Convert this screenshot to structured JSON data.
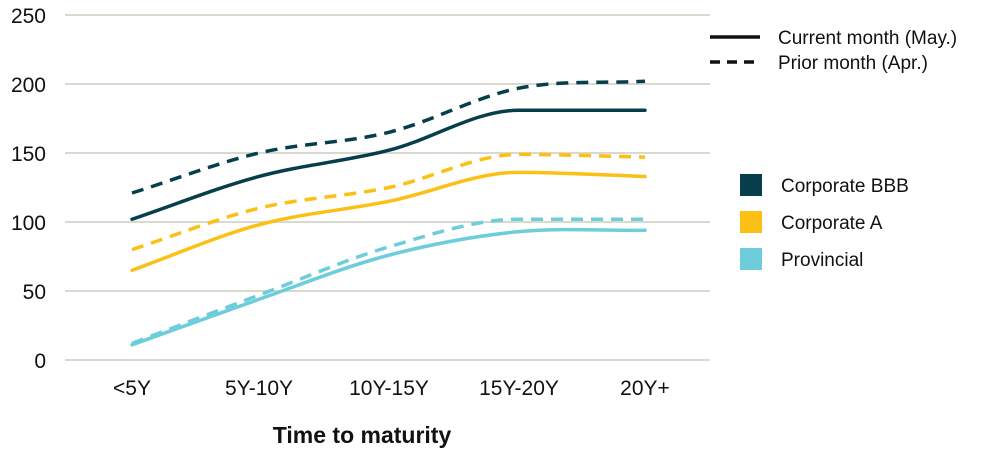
{
  "chart_data": {
    "type": "line",
    "title": "",
    "xlabel": "Time to maturity",
    "ylabel": "",
    "categories": [
      "<5Y",
      "5Y-10Y",
      "10Y-15Y",
      "15Y-20Y",
      "20Y+"
    ],
    "ylim": [
      0,
      250
    ],
    "yticks": [
      0,
      50,
      100,
      150,
      200,
      250
    ],
    "grid": "horizontal",
    "legend_placement": "right",
    "line_style_legend": [
      {
        "label": "Current month (May.)",
        "style": "solid"
      },
      {
        "label": "Prior month (Apr.)",
        "style": "dashed"
      }
    ],
    "series": [
      {
        "name": "Corporate BBB",
        "color": "#063f4b",
        "current": [
          102,
          133,
          152,
          181,
          181
        ],
        "prior": [
          121,
          150,
          165,
          197,
          202
        ]
      },
      {
        "name": "Corporate A",
        "color": "#fcc014",
        "current": [
          65,
          98,
          115,
          136,
          133
        ],
        "prior": [
          80,
          110,
          125,
          149,
          147
        ]
      },
      {
        "name": "Provincial",
        "color": "#6dcddb",
        "current": [
          11,
          44,
          76,
          93,
          94
        ],
        "prior": [
          12,
          47,
          82,
          102,
          102
        ]
      }
    ]
  }
}
